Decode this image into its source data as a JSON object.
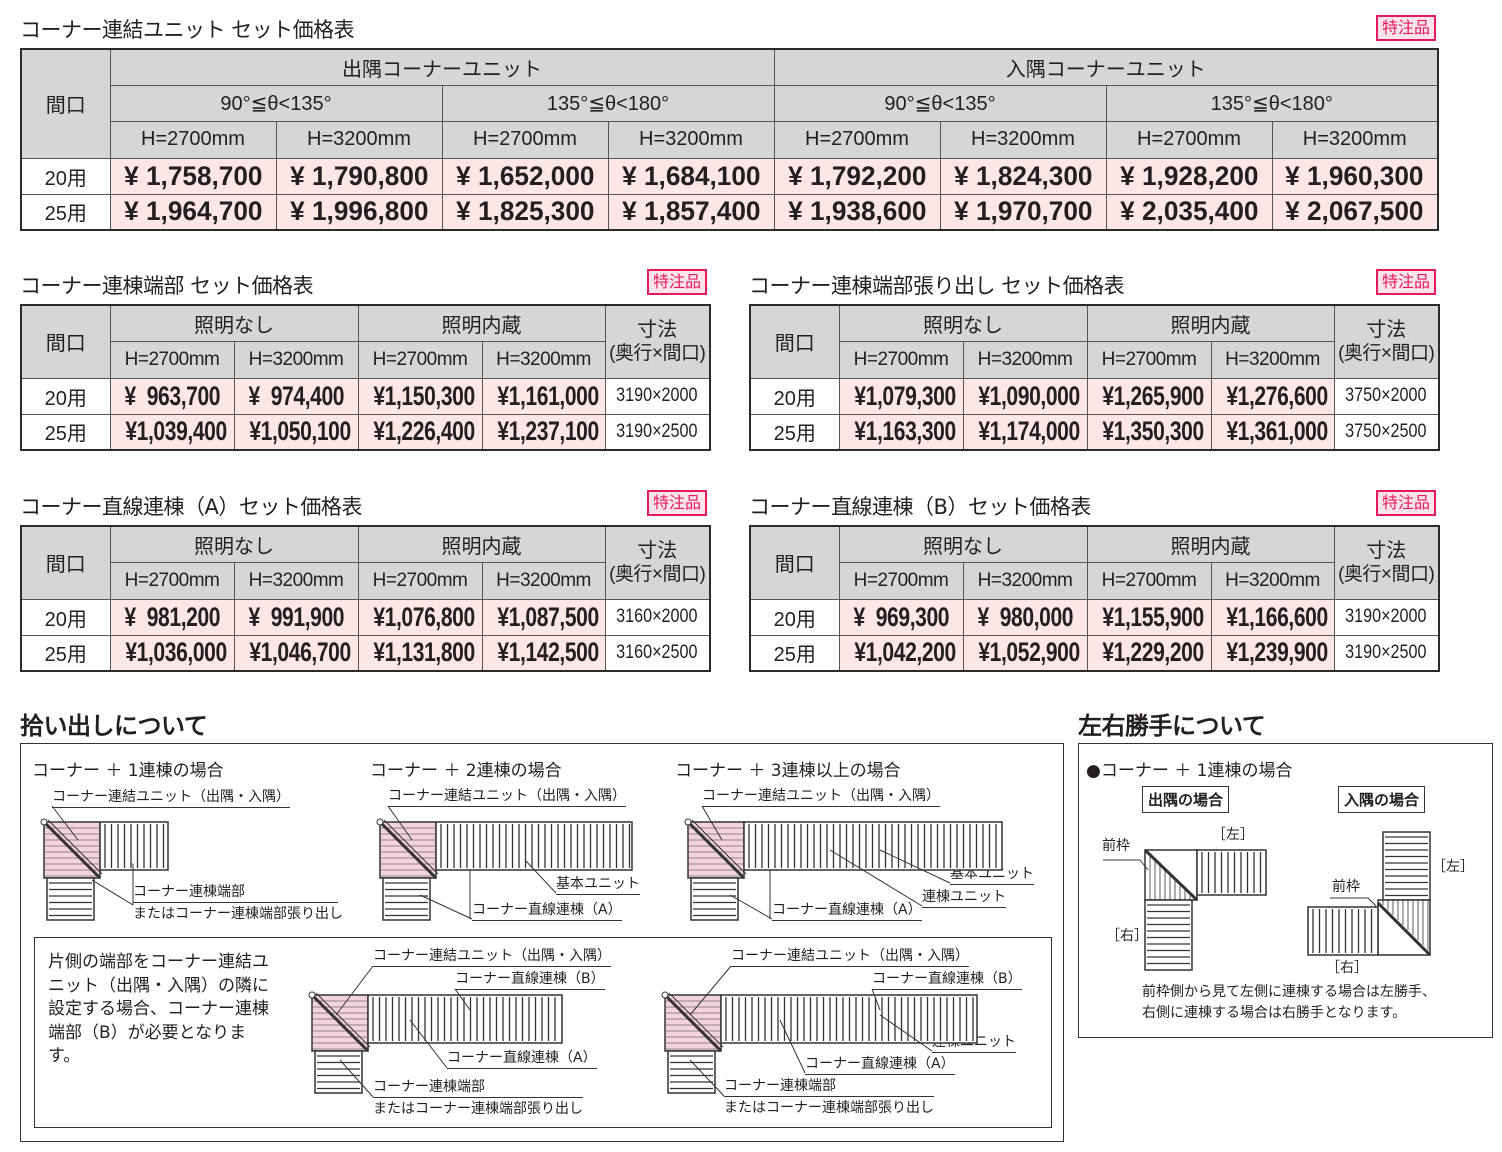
{
  "main_table": {
    "title": "コーナー連結ユニット セット価格表",
    "badge": "特注品",
    "col_label": "間口",
    "groups": [
      "出隅コーナーユニット",
      "入隅コーナーユニット"
    ],
    "angles": [
      "90°≦θ<135°",
      "135°≦θ<180°",
      "90°≦θ<135°",
      "135°≦θ<180°"
    ],
    "heights": [
      "H=2700mm",
      "H=3200mm",
      "H=2700mm",
      "H=3200mm",
      "H=2700mm",
      "H=3200mm",
      "H=2700mm",
      "H=3200mm"
    ],
    "rows": [
      {
        "label": "20用",
        "prices": [
          "¥ 1,758,700",
          "¥ 1,790,800",
          "¥ 1,652,000",
          "¥ 1,684,100",
          "¥ 1,792,200",
          "¥ 1,824,300",
          "¥ 1,928,200",
          "¥ 1,960,300"
        ]
      },
      {
        "label": "25用",
        "prices": [
          "¥ 1,964,700",
          "¥ 1,996,800",
          "¥ 1,825,300",
          "¥ 1,857,400",
          "¥ 1,938,600",
          "¥ 1,970,700",
          "¥ 2,035,400",
          "¥ 2,067,500"
        ]
      }
    ]
  },
  "small_tables": [
    {
      "title": "コーナー連棟端部 セット価格表",
      "badge": "特注品",
      "col_label": "間口",
      "groups": [
        "照明なし",
        "照明内蔵"
      ],
      "size_label": "寸法",
      "size_sub": "(奥行×間口)",
      "heights": [
        "H=2700mm",
        "H=3200mm",
        "H=2700mm",
        "H=3200mm"
      ],
      "rows": [
        {
          "label": "20用",
          "prices": [
            "¥  963,700",
            "¥  974,400",
            "¥1,150,300",
            "¥1,161,000"
          ],
          "size": "3190×2000"
        },
        {
          "label": "25用",
          "prices": [
            "¥1,039,400",
            "¥1,050,100",
            "¥1,226,400",
            "¥1,237,100"
          ],
          "size": "3190×2500"
        }
      ]
    },
    {
      "title": "コーナー連棟端部張り出し セット価格表",
      "badge": "特注品",
      "col_label": "間口",
      "groups": [
        "照明なし",
        "照明内蔵"
      ],
      "size_label": "寸法",
      "size_sub": "(奥行×間口)",
      "heights": [
        "H=2700mm",
        "H=3200mm",
        "H=2700mm",
        "H=3200mm"
      ],
      "rows": [
        {
          "label": "20用",
          "prices": [
            "¥1,079,300",
            "¥1,090,000",
            "¥1,265,900",
            "¥1,276,600"
          ],
          "size": "3750×2000"
        },
        {
          "label": "25用",
          "prices": [
            "¥1,163,300",
            "¥1,174,000",
            "¥1,350,300",
            "¥1,361,000"
          ],
          "size": "3750×2500"
        }
      ]
    },
    {
      "title": "コーナー直線連棟（A）セット価格表",
      "badge": "特注品",
      "col_label": "間口",
      "groups": [
        "照明なし",
        "照明内蔵"
      ],
      "size_label": "寸法",
      "size_sub": "(奥行×間口)",
      "heights": [
        "H=2700mm",
        "H=3200mm",
        "H=2700mm",
        "H=3200mm"
      ],
      "rows": [
        {
          "label": "20用",
          "prices": [
            "¥  981,200",
            "¥  991,900",
            "¥1,076,800",
            "¥1,087,500"
          ],
          "size": "3160×2000"
        },
        {
          "label": "25用",
          "prices": [
            "¥1,036,000",
            "¥1,046,700",
            "¥1,131,800",
            "¥1,142,500"
          ],
          "size": "3160×2500"
        }
      ]
    },
    {
      "title": "コーナー直線連棟（B）セット価格表",
      "badge": "特注品",
      "col_label": "間口",
      "groups": [
        "照明なし",
        "照明内蔵"
      ],
      "size_label": "寸法",
      "size_sub": "(奥行×間口)",
      "heights": [
        "H=2700mm",
        "H=3200mm",
        "H=2700mm",
        "H=3200mm"
      ],
      "rows": [
        {
          "label": "20用",
          "prices": [
            "¥  969,300",
            "¥  980,000",
            "¥1,155,900",
            "¥1,166,600"
          ],
          "size": "3190×2000"
        },
        {
          "label": "25用",
          "prices": [
            "¥1,042,200",
            "¥1,052,900",
            "¥1,229,200",
            "¥1,239,900"
          ],
          "size": "3190×2500"
        }
      ]
    }
  ],
  "picking": {
    "title": "拾い出しについて",
    "cases": [
      {
        "caption": "コーナー ＋ 1連棟の場合",
        "labels": [
          "コーナー連結ユニット（出隅・入隅）",
          "コーナー連棟端部",
          "またはコーナー連棟端部張り出し"
        ]
      },
      {
        "caption": "コーナー ＋ 2連棟の場合",
        "labels": [
          "コーナー連結ユニット（出隅・入隅）",
          "基本ユニット",
          "コーナー直線連棟（A）"
        ]
      },
      {
        "caption": "コーナー ＋ 3連棟以上の場合",
        "labels": [
          "コーナー連結ユニット（出隅・入隅）",
          "基本ユニット",
          "連棟ユニット",
          "コーナー直線連棟（A）"
        ]
      }
    ],
    "note": "片側の端部をコーナー連結ユニット（出隅・入隅）の隣に設定する場合、コーナー連棟端部（B）が必要となります。",
    "note_cases": [
      {
        "labels": [
          "コーナー連結ユニット（出隅・入隅）",
          "コーナー直線連棟（B）",
          "コーナー直線連棟（A）",
          "コーナー連棟端部",
          "またはコーナー連棟端部張り出し"
        ]
      },
      {
        "labels": [
          "コーナー連結ユニット（出隅・入隅）",
          "コーナー直線連棟（B）",
          "連棟ユニット",
          "コーナー直線連棟（A）",
          "コーナー連棟端部",
          "またはコーナー連棟端部張り出し"
        ]
      }
    ]
  },
  "handedness": {
    "title": "左右勝手について",
    "caption": "●コーナー ＋ 1連棟の場合",
    "outer": {
      "tag": "出隅の場合",
      "front": "前枠",
      "left": "［左］",
      "right": "［右］"
    },
    "inner": {
      "tag": "入隅の場合",
      "front": "前枠",
      "left": "［左］",
      "right": "［右］"
    },
    "note_line1": "前枠側から見て左側に連棟する場合は左勝手、",
    "note_line2": "右側に連棟する場合は右勝手となります。"
  },
  "colors": {
    "badge": "#e6195a",
    "price_bg": "#fde6e6",
    "header_bg": "#d5d6d8",
    "corner_fill": "#f5d3dc"
  }
}
